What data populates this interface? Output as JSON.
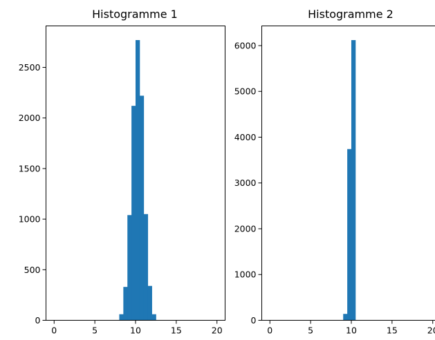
{
  "chart_data": [
    {
      "type": "bar",
      "title": "Histogramme 1",
      "xlabel": "",
      "ylabel": "",
      "xlim": [
        -1,
        21
      ],
      "ylim": [
        0,
        2910
      ],
      "xticks": [
        "0",
        "5",
        "10",
        "15",
        "20"
      ],
      "yticks": [
        "0",
        "500",
        "1000",
        "1500",
        "2000",
        "2500"
      ],
      "grid": false,
      "color": "#1f77b4",
      "bins": [
        {
          "x0": 8.0,
          "x1": 8.5,
          "value": 60
        },
        {
          "x0": 8.5,
          "x1": 9.0,
          "value": 330
        },
        {
          "x0": 9.0,
          "x1": 9.5,
          "value": 1040
        },
        {
          "x0": 9.5,
          "x1": 10.0,
          "value": 2120
        },
        {
          "x0": 10.0,
          "x1": 10.5,
          "value": 2770
        },
        {
          "x0": 10.5,
          "x1": 11.0,
          "value": 2220
        },
        {
          "x0": 11.0,
          "x1": 11.5,
          "value": 1050
        },
        {
          "x0": 11.5,
          "x1": 12.0,
          "value": 340
        },
        {
          "x0": 12.0,
          "x1": 12.5,
          "value": 60
        }
      ]
    },
    {
      "type": "bar",
      "title": "Histogramme 2",
      "xlabel": "",
      "ylabel": "",
      "xlim": [
        -1,
        21
      ],
      "ylim": [
        0,
        6430
      ],
      "xticks": [
        "0",
        "5",
        "10",
        "15",
        "20"
      ],
      "yticks": [
        "0",
        "1000",
        "2000",
        "3000",
        "4000",
        "5000",
        "6000"
      ],
      "grid": false,
      "color": "#1f77b4",
      "bins": [
        {
          "x0": 9.0,
          "x1": 9.5,
          "value": 140
        },
        {
          "x0": 9.5,
          "x1": 10.0,
          "value": 3740
        },
        {
          "x0": 10.0,
          "x1": 10.5,
          "value": 6120
        },
        {
          "x0": 10.5,
          "x1": 11.0,
          "value": 0
        }
      ]
    }
  ]
}
